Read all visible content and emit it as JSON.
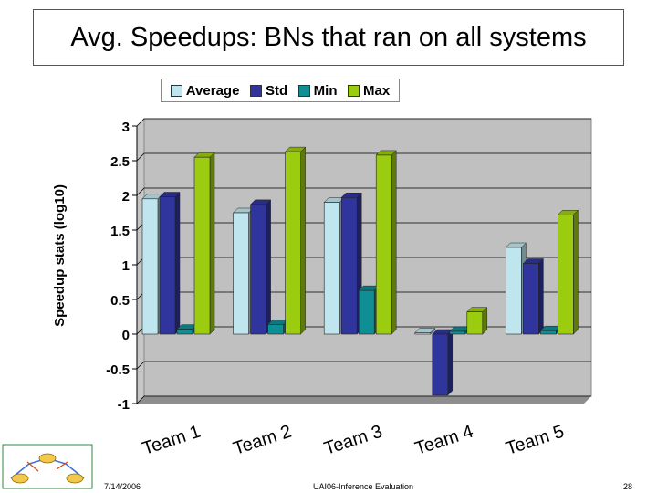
{
  "slide": {
    "title": "Avg. Speedups: BNs that ran on all systems",
    "footer_date": "7/14/2006",
    "footer_center": "UAI06-Inference Evaluation",
    "page_number": "28"
  },
  "chart_data": {
    "type": "bar",
    "title": "Avg. Speedups: BNs that ran on all systems",
    "ylabel": "Speedup stats (log10)",
    "xlabel": "",
    "ylim": [
      -1,
      3
    ],
    "yticks": [
      "3",
      "2.5",
      "2",
      "1.5",
      "1",
      "0.5",
      "0",
      "-0.5",
      "-1"
    ],
    "ytick_values": [
      3,
      2.5,
      2,
      1.5,
      1,
      0.5,
      0,
      -0.5,
      -1
    ],
    "grid": true,
    "legend_position": "top",
    "categories": [
      "Team 1",
      "Team 2",
      "Team 3",
      "Team 4",
      "Team 5"
    ],
    "series": [
      {
        "name": "Average",
        "color": "#bfe6ee",
        "values": [
          1.95,
          1.75,
          1.9,
          0.02,
          1.25
        ]
      },
      {
        "name": "Std",
        "color": "#30359e",
        "values": [
          1.98,
          1.87,
          1.97,
          -0.88,
          1.02
        ]
      },
      {
        "name": "Min",
        "color": "#0f8e94",
        "values": [
          0.07,
          0.14,
          0.63,
          0.04,
          0.05
        ]
      },
      {
        "name": "Max",
        "color": "#9ccc10",
        "values": [
          2.55,
          2.63,
          2.58,
          0.32,
          1.72
        ]
      }
    ]
  }
}
